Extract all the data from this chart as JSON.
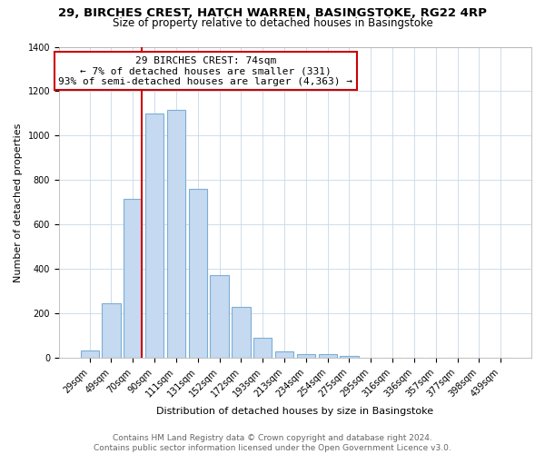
{
  "title_line1": "29, BIRCHES CREST, HATCH WARREN, BASINGSTOKE, RG22 4RP",
  "title_line2": "Size of property relative to detached houses in Basingstoke",
  "xlabel": "Distribution of detached houses by size in Basingstoke",
  "ylabel": "Number of detached properties",
  "bar_labels": [
    "29sqm",
    "49sqm",
    "70sqm",
    "90sqm",
    "111sqm",
    "131sqm",
    "152sqm",
    "172sqm",
    "193sqm",
    "213sqm",
    "234sqm",
    "254sqm",
    "275sqm",
    "295sqm",
    "316sqm",
    "336sqm",
    "357sqm",
    "377sqm",
    "398sqm",
    "439sqm"
  ],
  "bar_values": [
    35,
    245,
    715,
    1100,
    1115,
    760,
    375,
    230,
    90,
    30,
    20,
    20,
    10,
    0,
    0,
    0,
    0,
    0,
    0,
    0
  ],
  "bar_color": "#c5d9f1",
  "bar_edge_color": "#7bafd4",
  "vline_color": "#cc0000",
  "annotation_line1": "29 BIRCHES CREST: 74sqm",
  "annotation_line2": "← 7% of detached houses are smaller (331)",
  "annotation_line3": "93% of semi-detached houses are larger (4,363) →",
  "annotation_box_edge": "#cc0000",
  "annotation_box_face": "#ffffff",
  "ylim": [
    0,
    1400
  ],
  "yticks": [
    0,
    200,
    400,
    600,
    800,
    1000,
    1200,
    1400
  ],
  "footer_line1": "Contains HM Land Registry data © Crown copyright and database right 2024.",
  "footer_line2": "Contains public sector information licensed under the Open Government Licence v3.0.",
  "title_fontsize": 9.5,
  "subtitle_fontsize": 8.5,
  "axis_label_fontsize": 8,
  "tick_fontsize": 7,
  "annotation_fontsize": 8,
  "footer_fontsize": 6.5
}
